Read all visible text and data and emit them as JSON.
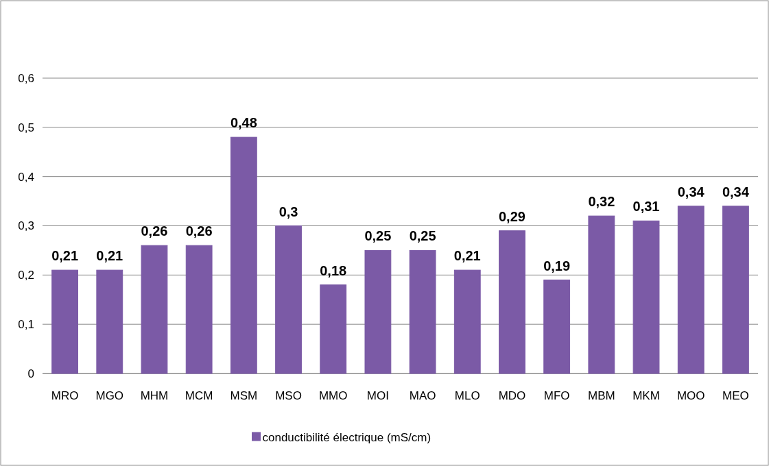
{
  "chart_data": {
    "type": "bar",
    "categories": [
      "MRO",
      "MGO",
      "MHM",
      "MCM",
      "MSM",
      "MSO",
      "MMO",
      "MOI",
      "MAO",
      "MLO",
      "MDO",
      "MFO",
      "MBM",
      "MKM",
      "MOO",
      "MEO"
    ],
    "series": [
      {
        "name": "conductibilité électrique (mS/cm)",
        "color": "#7b5aa6",
        "values": [
          0.21,
          0.21,
          0.26,
          0.26,
          0.48,
          0.3,
          0.18,
          0.25,
          0.25,
          0.21,
          0.29,
          0.19,
          0.32,
          0.31,
          0.34,
          0.34
        ]
      }
    ],
    "value_labels": [
      "0,21",
      "0,21",
      "0,26",
      "0,26",
      "0,48",
      "0,3",
      "0,18",
      "0,25",
      "0,25",
      "0,21",
      "0,29",
      "0,19",
      "0,32",
      "0,31",
      "0,34",
      "0,34"
    ],
    "ylim": [
      0,
      0.6
    ],
    "yticks": [
      {
        "value": 0,
        "label": "0"
      },
      {
        "value": 0.1,
        "label": "0,1"
      },
      {
        "value": 0.2,
        "label": "0,2"
      },
      {
        "value": 0.3,
        "label": "0,3"
      },
      {
        "value": 0.4,
        "label": "0,4"
      },
      {
        "value": 0.5,
        "label": "0,5"
      },
      {
        "value": 0.6,
        "label": "0,6"
      }
    ],
    "grid": "y",
    "legend": "bottom"
  }
}
